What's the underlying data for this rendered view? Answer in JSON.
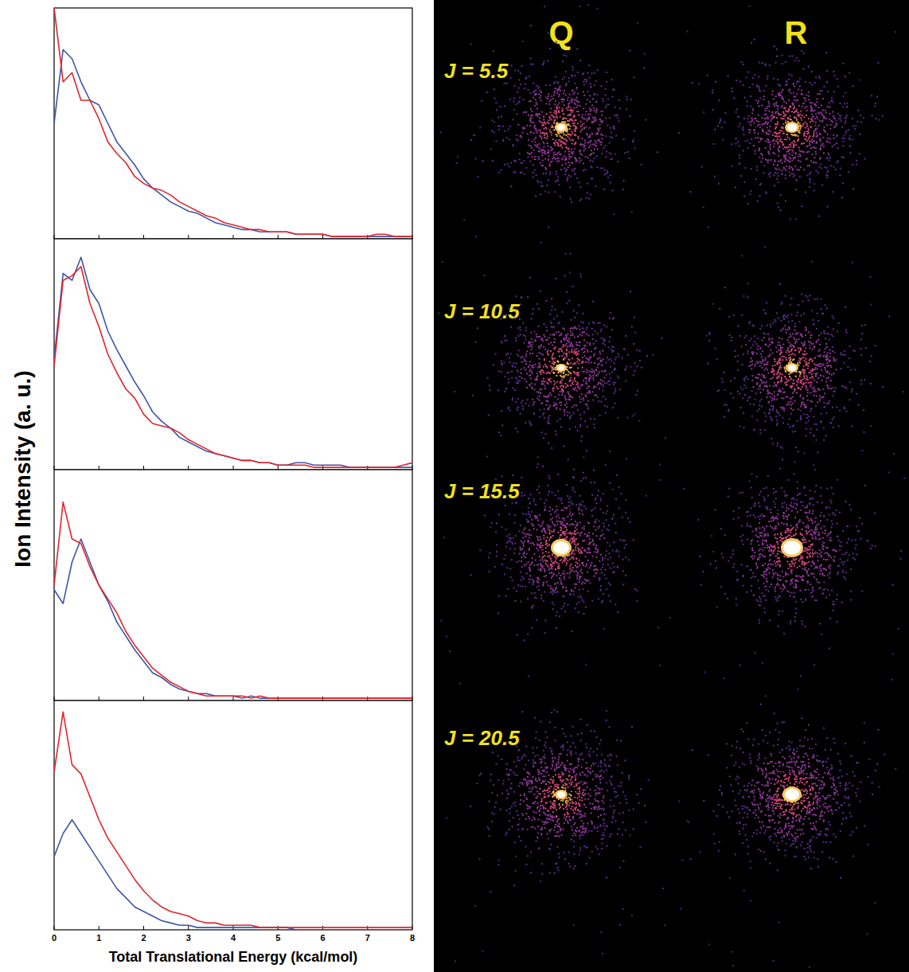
{
  "chart_data": [
    {
      "type": "line",
      "x": [
        0,
        0.2,
        0.4,
        0.6,
        0.8,
        1,
        1.2,
        1.4,
        1.6,
        1.8,
        2,
        2.2,
        2.4,
        2.6,
        2.8,
        3,
        3.2,
        3.4,
        3.6,
        3.8,
        4,
        4.2,
        4.4,
        4.6,
        4.8,
        5,
        5.2,
        5.4,
        5.6,
        5.8,
        6,
        6.2,
        6.4,
        6.6,
        6.8,
        7,
        7.2,
        7.4,
        7.6,
        7.8,
        8
      ],
      "xlim": [
        0,
        8
      ],
      "xticks": [
        0,
        1,
        2,
        3,
        4,
        5,
        6,
        7,
        8
      ],
      "ylim": [
        0,
        100
      ],
      "tick_labels": false,
      "series": [
        {
          "color": "#3f56a6",
          "values": [
            50,
            82,
            78,
            68,
            60,
            58,
            50,
            42,
            37,
            32,
            26,
            22,
            19,
            16,
            14,
            12,
            11,
            9,
            7,
            6,
            5,
            4,
            4,
            3,
            3,
            3,
            3,
            2,
            2,
            2,
            2,
            1,
            1,
            1,
            1,
            1,
            1,
            1,
            1,
            1,
            1
          ]
        },
        {
          "color": "#e3242b",
          "values": [
            100,
            68,
            72,
            60,
            60,
            52,
            42,
            37,
            33,
            27,
            24,
            22,
            21,
            19,
            16,
            14,
            12,
            10,
            9,
            7,
            6,
            5,
            4,
            4,
            3,
            3,
            3,
            2,
            2,
            2,
            2,
            1,
            1,
            1,
            1,
            1,
            2,
            2,
            1,
            1,
            1
          ]
        }
      ]
    },
    {
      "type": "line",
      "x": [
        0,
        0.2,
        0.4,
        0.6,
        0.8,
        1,
        1.2,
        1.4,
        1.6,
        1.8,
        2,
        2.2,
        2.4,
        2.6,
        2.8,
        3,
        3.2,
        3.4,
        3.6,
        3.8,
        4,
        4.2,
        4.4,
        4.6,
        4.8,
        5,
        5.2,
        5.4,
        5.6,
        5.8,
        6,
        6.2,
        6.4,
        6.6,
        6.8,
        7,
        7.2,
        7.4,
        7.6,
        7.8,
        8
      ],
      "xlim": [
        0,
        8
      ],
      "xticks": [
        0,
        1,
        2,
        3,
        4,
        5,
        6,
        7,
        8
      ],
      "ylim": [
        0,
        100
      ],
      "tick_labels": false,
      "series": [
        {
          "color": "#3f56a6",
          "values": [
            48,
            85,
            82,
            92,
            78,
            72,
            60,
            52,
            45,
            38,
            32,
            25,
            21,
            18,
            14,
            12,
            10,
            8,
            7,
            6,
            5,
            4,
            4,
            3,
            3,
            2,
            2,
            3,
            3,
            2,
            2,
            2,
            2,
            1,
            1,
            1,
            1,
            1,
            1,
            1,
            1
          ]
        },
        {
          "color": "#e3242b",
          "values": [
            45,
            82,
            84,
            88,
            72,
            62,
            50,
            42,
            35,
            31,
            24,
            20,
            19,
            18,
            16,
            13,
            11,
            9,
            7,
            6,
            5,
            4,
            4,
            3,
            3,
            2,
            2,
            2,
            2,
            1,
            1,
            1,
            1,
            1,
            1,
            1,
            1,
            1,
            1,
            2,
            3
          ]
        }
      ]
    },
    {
      "type": "line",
      "x": [
        0,
        0.2,
        0.4,
        0.6,
        0.8,
        1,
        1.2,
        1.4,
        1.6,
        1.8,
        2,
        2.2,
        2.4,
        2.6,
        2.8,
        3,
        3.2,
        3.4,
        3.6,
        3.8,
        4,
        4.2,
        4.4,
        4.6,
        4.8,
        5,
        5.2,
        5.4,
        5.6,
        5.8,
        6,
        6.2,
        6.4,
        6.6,
        6.8,
        7,
        7.2,
        7.4,
        7.6,
        7.8,
        8
      ],
      "xlim": [
        0,
        8
      ],
      "xticks": [
        0,
        1,
        2,
        3,
        4,
        5,
        6,
        7,
        8
      ],
      "ylim": [
        0,
        100
      ],
      "tick_labels": false,
      "series": [
        {
          "color": "#3f56a6",
          "values": [
            48,
            42,
            60,
            70,
            60,
            50,
            43,
            34,
            28,
            22,
            17,
            12,
            10,
            7,
            5,
            4,
            3,
            3,
            2,
            2,
            2,
            1,
            2,
            1,
            1,
            1,
            1,
            1,
            1,
            1,
            1,
            1,
            1,
            1,
            1,
            1,
            1,
            1,
            1,
            1,
            1
          ]
        },
        {
          "color": "#e3242b",
          "values": [
            50,
            86,
            70,
            68,
            58,
            50,
            44,
            38,
            30,
            24,
            19,
            14,
            11,
            8,
            6,
            4,
            3,
            2,
            2,
            2,
            2,
            2,
            1,
            2,
            1,
            1,
            1,
            1,
            1,
            1,
            1,
            1,
            1,
            1,
            1,
            1,
            1,
            1,
            1,
            1,
            1
          ]
        }
      ]
    },
    {
      "type": "line",
      "x": [
        0,
        0.2,
        0.4,
        0.6,
        0.8,
        1,
        1.2,
        1.4,
        1.6,
        1.8,
        2,
        2.2,
        2.4,
        2.6,
        2.8,
        3,
        3.2,
        3.4,
        3.6,
        3.8,
        4,
        4.2,
        4.4,
        4.6,
        4.8,
        5,
        5.2,
        5.4,
        5.6,
        5.8,
        6,
        6.2,
        6.4,
        6.6,
        6.8,
        7,
        7.2,
        7.4,
        7.6,
        7.8,
        8
      ],
      "xlim": [
        0,
        8
      ],
      "xticks": [
        0,
        1,
        2,
        3,
        4,
        5,
        6,
        7,
        8
      ],
      "ylim": [
        0,
        100
      ],
      "tick_labels": "x",
      "x_label": "Total Translational Energy (kcal/mol)",
      "series": [
        {
          "color": "#3f56a6",
          "values": [
            32,
            42,
            48,
            42,
            36,
            30,
            24,
            18,
            14,
            10,
            8,
            6,
            4,
            3,
            2,
            2,
            1,
            1,
            1,
            1,
            1,
            1,
            1,
            1,
            1,
            1,
            1,
            0,
            0,
            0,
            0,
            0,
            0,
            0,
            0,
            0,
            0,
            0,
            0,
            0,
            0
          ]
        },
        {
          "color": "#e3242b",
          "values": [
            69,
            95,
            72,
            68,
            58,
            48,
            40,
            34,
            28,
            22,
            17,
            13,
            10,
            8,
            7,
            6,
            4,
            3,
            3,
            2,
            2,
            2,
            2,
            1,
            1,
            1,
            1,
            1,
            1,
            1,
            1,
            1,
            1,
            1,
            1,
            1,
            1,
            1,
            1,
            1,
            1
          ]
        }
      ]
    }
  ],
  "y_label": "Ion Intensity (a. u.)",
  "ion_images": {
    "columns": [
      "Q",
      "R"
    ],
    "rows": [
      "J = 5.5",
      "J = 10.5",
      "J = 15.5",
      "J = 20.5"
    ]
  }
}
